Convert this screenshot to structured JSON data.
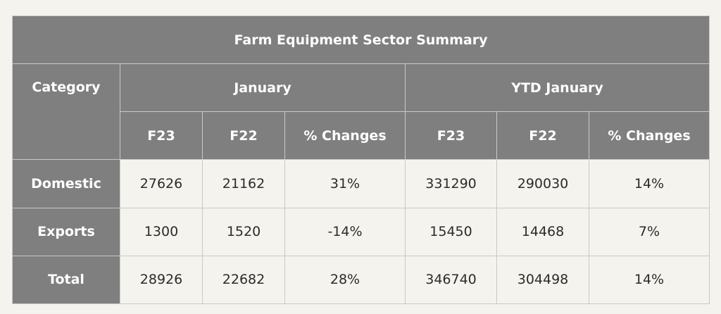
{
  "chart_data": {
    "type": "table",
    "title": "Farm Equipment Sector Summary",
    "category_header": "Category",
    "groups": [
      "January",
      "YTD January"
    ],
    "subheaders": [
      "F23",
      "F22",
      "% Changes",
      "F23",
      "F22",
      "% Changes"
    ],
    "rows": [
      {
        "label": "Domestic",
        "values": [
          "27626",
          "21162",
          "31%",
          "331290",
          "290030",
          "14%"
        ]
      },
      {
        "label": "Exports",
        "values": [
          "1300",
          "1520",
          "-14%",
          "15450",
          "14468",
          "7%"
        ]
      },
      {
        "label": "Total",
        "values": [
          "28926",
          "22682",
          "28%",
          "346740",
          "304498",
          "14%"
        ]
      }
    ]
  },
  "colors": {
    "header_bg": "#7f7f7f",
    "header_text": "#ffffff",
    "body_bg": "#f4f3ee",
    "border": "#c9c9c6"
  }
}
